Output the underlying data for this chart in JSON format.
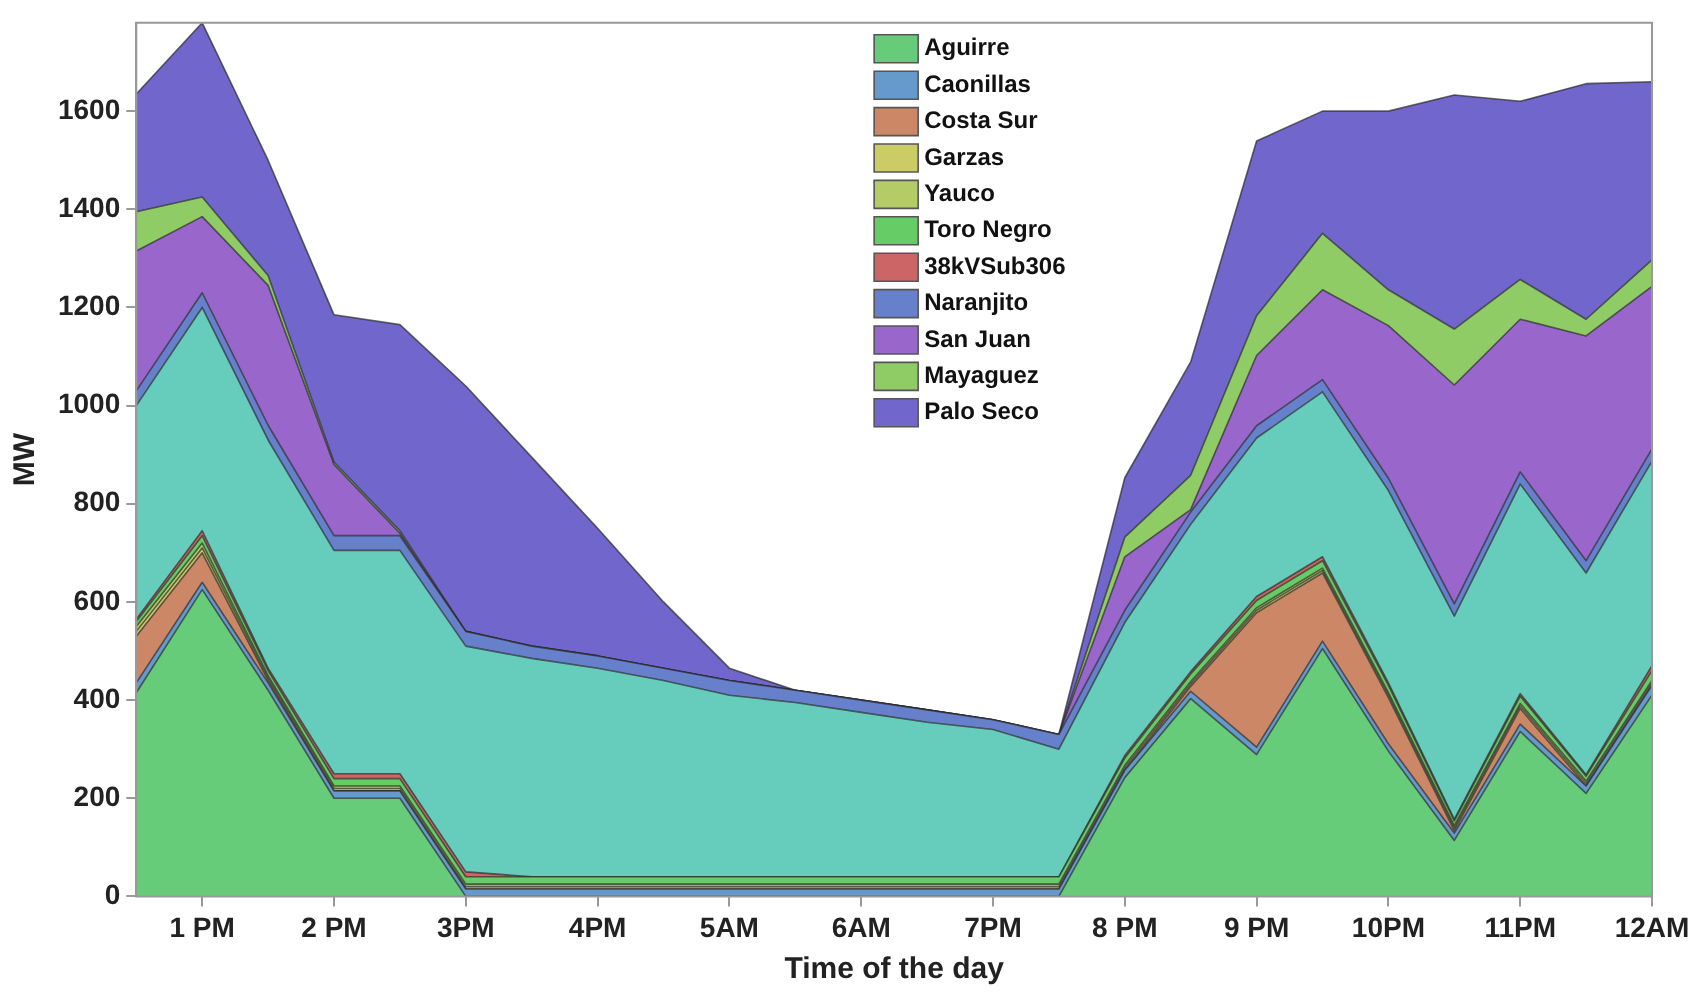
{
  "chart_data": {
    "type": "area",
    "stacked": true,
    "xlabel": "Time of the day",
    "ylabel": "MW",
    "categories": [
      null,
      "1 PM",
      null,
      "2 PM",
      null,
      "3PM",
      null,
      "4PM",
      null,
      "5AM",
      null,
      "6AM",
      null,
      "7PM",
      null,
      "8 PM",
      null,
      "9 PM",
      null,
      "10PM",
      null,
      "11PM",
      null,
      "12AM"
    ],
    "ylim": [
      0,
      1780
    ],
    "yticks": [
      0,
      200,
      400,
      600,
      800,
      1000,
      1200,
      1400,
      1600
    ],
    "grid": false,
    "legend": "top",
    "series": [
      {
        "name": "Aguirre",
        "color": "#66cc7a",
        "values": [
          415,
          625,
          420,
          200,
          200,
          0,
          0,
          0,
          0,
          0,
          0,
          0,
          0,
          0,
          0,
          242,
          403,
          289,
          505,
          296,
          114,
          336,
          210,
          410
        ]
      },
      {
        "name": "Caonillas",
        "color": "#6699cc",
        "values": [
          20,
          15,
          15,
          15,
          15,
          15,
          15,
          15,
          15,
          15,
          15,
          15,
          15,
          15,
          15,
          15,
          15,
          15,
          15,
          15,
          15,
          15,
          15,
          20
        ]
      },
      {
        "name": "Costa Sur",
        "color": "#cc8866",
        "values": [
          95,
          60,
          5,
          0,
          0,
          0,
          0,
          0,
          0,
          0,
          0,
          0,
          0,
          0,
          0,
          0,
          10,
          274,
          139,
          94,
          5,
          32,
          0,
          0
        ]
      },
      {
        "name": "Garzas",
        "color": "#cccc66",
        "values": [
          10,
          10,
          5,
          5,
          5,
          5,
          5,
          5,
          5,
          5,
          5,
          5,
          5,
          5,
          5,
          5,
          5,
          5,
          5,
          5,
          5,
          5,
          5,
          5
        ]
      },
      {
        "name": "Yauco",
        "color": "#b3cc66",
        "values": [
          10,
          10,
          5,
          5,
          5,
          5,
          5,
          5,
          5,
          5,
          5,
          5,
          5,
          5,
          5,
          5,
          5,
          5,
          5,
          5,
          5,
          5,
          5,
          5
        ]
      },
      {
        "name": "Toro Negro",
        "color": "#66cc66",
        "values": [
          10,
          15,
          10,
          15,
          15,
          15,
          15,
          15,
          15,
          15,
          15,
          15,
          15,
          15,
          15,
          15,
          15,
          15,
          15,
          15,
          10,
          15,
          10,
          20
        ]
      },
      {
        "name": "38kVSub306",
        "color": "#cc6666",
        "values": [
          5,
          10,
          5,
          10,
          10,
          10,
          0,
          0,
          0,
          0,
          0,
          0,
          0,
          0,
          0,
          5,
          5,
          8,
          8,
          5,
          3,
          5,
          3,
          10
        ]
      },
      {
        "color": "#66ccbb",
        "values": [
          435,
          455,
          465,
          455,
          455,
          460,
          445,
          425,
          400,
          370,
          355,
          335,
          315,
          300,
          260,
          271,
          300,
          323,
          336,
          392,
          414,
          427,
          411,
          417
        ]
      },
      {
        "name": "Naranjito",
        "color": "#6680cc",
        "values": [
          30,
          30,
          30,
          30,
          30,
          30,
          25,
          25,
          25,
          30,
          25,
          25,
          25,
          20,
          30,
          25,
          25,
          25,
          25,
          25,
          25,
          25,
          25,
          25
        ]
      },
      {
        "name": "San Juan",
        "color": "#9966cc",
        "values": [
          285,
          155,
          285,
          145,
          5,
          0,
          0,
          0,
          0,
          0,
          0,
          0,
          0,
          0,
          0,
          109,
          5,
          143,
          183,
          311,
          446,
          311,
          458,
          331
        ]
      },
      {
        "name": "Mayaguez",
        "color": "#8fcc66",
        "values": [
          80,
          40,
          20,
          5,
          5,
          0,
          0,
          0,
          0,
          0,
          0,
          0,
          0,
          0,
          0,
          40,
          70,
          81,
          115,
          73,
          114,
          81,
          34,
          54
        ]
      },
      {
        "name": "Palo Seco",
        "color": "#7066cc",
        "values": [
          240,
          355,
          235,
          300,
          420,
          500,
          385,
          260,
          135,
          25,
          0,
          0,
          0,
          0,
          0,
          121,
          231,
          356,
          249,
          364,
          477,
          363,
          480,
          363
        ]
      }
    ]
  }
}
